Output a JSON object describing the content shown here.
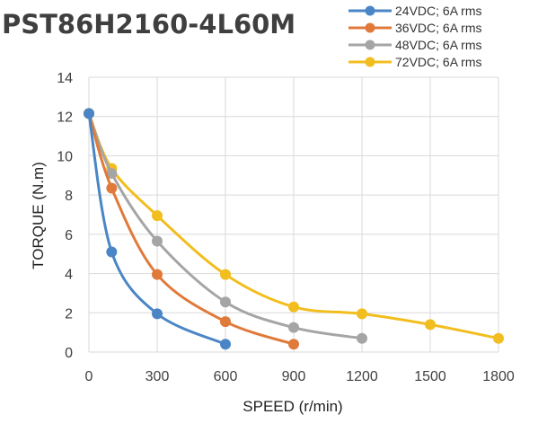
{
  "chart_data": {
    "type": "line",
    "title": "PST86H2160-4L60M",
    "xlabel": "SPEED (r/min)",
    "ylabel": "TORQUE (N.m)",
    "xlim": [
      0,
      1800
    ],
    "ylim": [
      0,
      14
    ],
    "x_ticks": [
      "0",
      "300",
      "600",
      "900",
      "1200",
      "1500",
      "1800"
    ],
    "y_ticks": [
      "0",
      "2",
      "4",
      "6",
      "8",
      "10",
      "12",
      "14"
    ],
    "grid": true,
    "legend_position": "top-right",
    "series": [
      {
        "name": "24VDC; 6A rms",
        "color": "#4a86c5",
        "x": [
          0,
          100,
          300,
          600
        ],
        "y": [
          12.15,
          5.1,
          1.95,
          0.4
        ]
      },
      {
        "name": "36VDC; 6A rms",
        "color": "#e07a3a",
        "x": [
          0,
          100,
          300,
          600,
          900
        ],
        "y": [
          12.15,
          8.35,
          3.95,
          1.55,
          0.4
        ]
      },
      {
        "name": "48VDC; 6A rms",
        "color": "#a5a5a5",
        "x": [
          0,
          100,
          300,
          600,
          900,
          1200
        ],
        "y": [
          12.15,
          9.1,
          5.65,
          2.55,
          1.25,
          0.7
        ]
      },
      {
        "name": "72VDC; 6A rms",
        "color": "#f2bd1e",
        "x": [
          0,
          100,
          300,
          600,
          900,
          1200,
          1500,
          1800
        ],
        "y": [
          12.15,
          9.35,
          6.95,
          3.95,
          2.3,
          1.95,
          1.4,
          0.7
        ]
      }
    ]
  }
}
